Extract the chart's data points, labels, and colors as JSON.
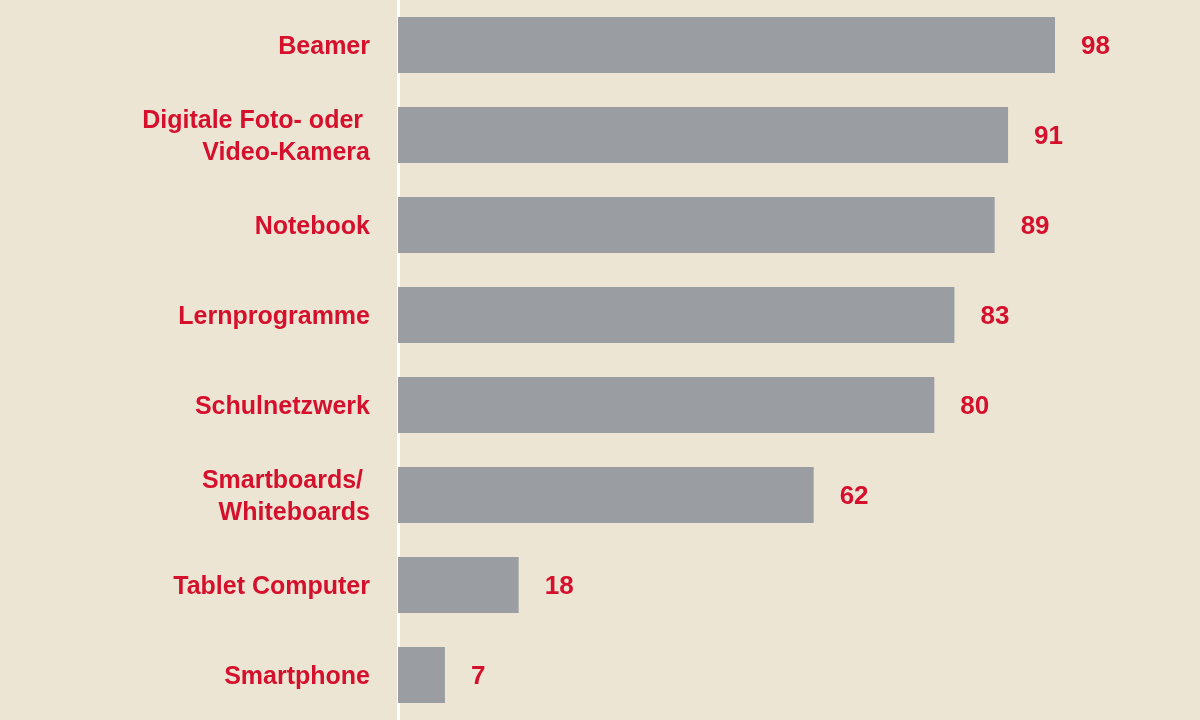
{
  "chart_data": {
    "type": "bar",
    "orientation": "horizontal",
    "categories": [
      "Beamer",
      "Digitale Foto- oder Video-Kamera",
      "Notebook",
      "Lernprogramme",
      "Schulnetzwerk",
      "Smartboards/ Whiteboards",
      "Tablet Computer",
      "Smartphone"
    ],
    "values": [
      98,
      91,
      89,
      83,
      80,
      62,
      18,
      7
    ],
    "color": "#9a9da1",
    "data_labels": true
  }
}
